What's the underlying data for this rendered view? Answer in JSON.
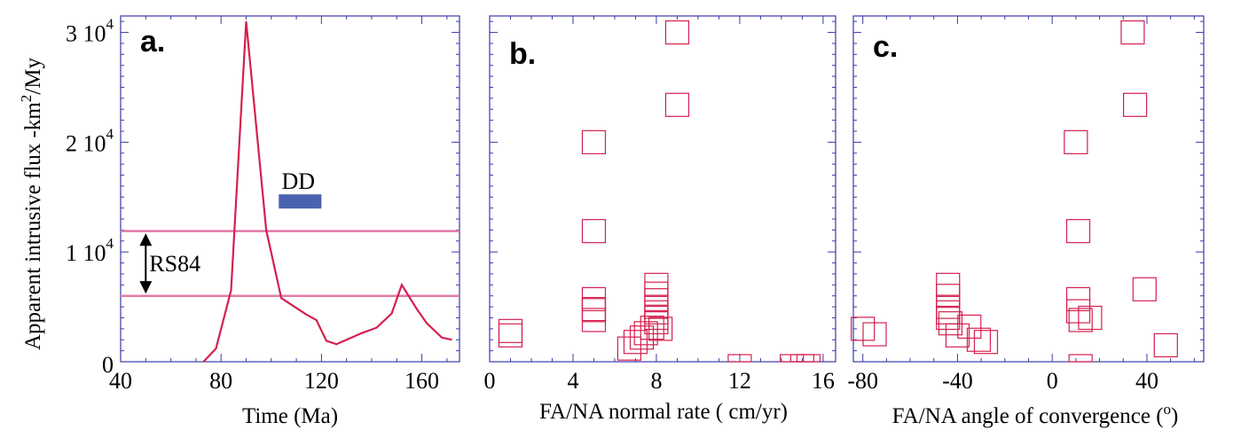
{
  "ylabel": "Apparent intrusive flux -km",
  "ylabel_sup": "2",
  "ylabel_tail": "/My",
  "y_ticks": [
    {
      "value": 0,
      "base": "0",
      "exp": ""
    },
    {
      "value": 10000,
      "base": "1 10",
      "exp": "4"
    },
    {
      "value": 20000,
      "base": "2 10",
      "exp": "4"
    },
    {
      "value": 30000,
      "base": "3 10",
      "exp": "4"
    }
  ],
  "ylim": [
    0,
    31500
  ],
  "colors": {
    "series": "#d4204e",
    "band": "#e07aa8",
    "dd_bar": "#4a62b0",
    "axis": "#3a3aa8"
  },
  "chart_data": [
    {
      "type": "line",
      "panel_label": "a.",
      "xlabel": "Time (Ma)",
      "xlim": [
        40,
        175
      ],
      "xticks": [
        40,
        80,
        120,
        160
      ],
      "x": [
        73,
        78,
        84,
        90,
        98,
        104,
        114,
        118,
        122,
        126,
        136,
        142,
        148,
        152,
        158,
        162,
        168,
        172
      ],
      "y": [
        0,
        1200,
        6500,
        31000,
        12000,
        5800,
        4300,
        3800,
        1900,
        1600,
        2600,
        3100,
        4400,
        7000,
        4800,
        3500,
        2200,
        2000
      ],
      "hlines": [
        11900,
        6000
      ],
      "annotations": {
        "rs_label": "RS84",
        "dd_label": "DD",
        "dd_bar": {
          "x": [
            103,
            120
          ],
          "y": 14600
        }
      }
    },
    {
      "type": "scatter",
      "panel_label": "b.",
      "xlabel": "FA/NA normal rate ( cm/yr)",
      "xlim": [
        0,
        16.6
      ],
      "xticks": [
        0,
        4,
        8,
        12,
        16
      ],
      "x": [
        1,
        1,
        5,
        5,
        5,
        5,
        5,
        5,
        6.7,
        7,
        7.3,
        7.5,
        7.8,
        8,
        8,
        8,
        8,
        8,
        8,
        8,
        8.2,
        9,
        9,
        12,
        14.5,
        15,
        15.3
      ],
      "y": [
        2800,
        2400,
        20000,
        11900,
        5700,
        4800,
        3800,
        4700,
        1200,
        1800,
        2200,
        2600,
        3100,
        3600,
        4000,
        4500,
        5000,
        5600,
        6200,
        7000,
        3000,
        30000,
        23400,
        300,
        250,
        250,
        250
      ]
    },
    {
      "type": "scatter",
      "panel_label": "c.",
      "xlabel": "FA/NA angle of convergence (",
      "xlabel_sup": "o",
      "xlabel_tail": ")",
      "xlim": [
        -84,
        64
      ],
      "xticks": [
        -80,
        -40,
        0,
        40
      ],
      "tick_labels": [
        "-80",
        "-40",
        "0",
        "40"
      ],
      "x": [
        -80,
        -75,
        -44,
        -44,
        -44,
        -44,
        -44,
        -43,
        -40,
        -35,
        -31,
        -28,
        10,
        11,
        11,
        11,
        12,
        12,
        16,
        34,
        35,
        39,
        48
      ],
      "y": [
        3000,
        2500,
        7000,
        6000,
        5000,
        4500,
        4000,
        3500,
        2400,
        3200,
        2000,
        1800,
        20000,
        11900,
        5700,
        4600,
        3800,
        300,
        4000,
        30000,
        23400,
        6600,
        1500
      ]
    }
  ]
}
